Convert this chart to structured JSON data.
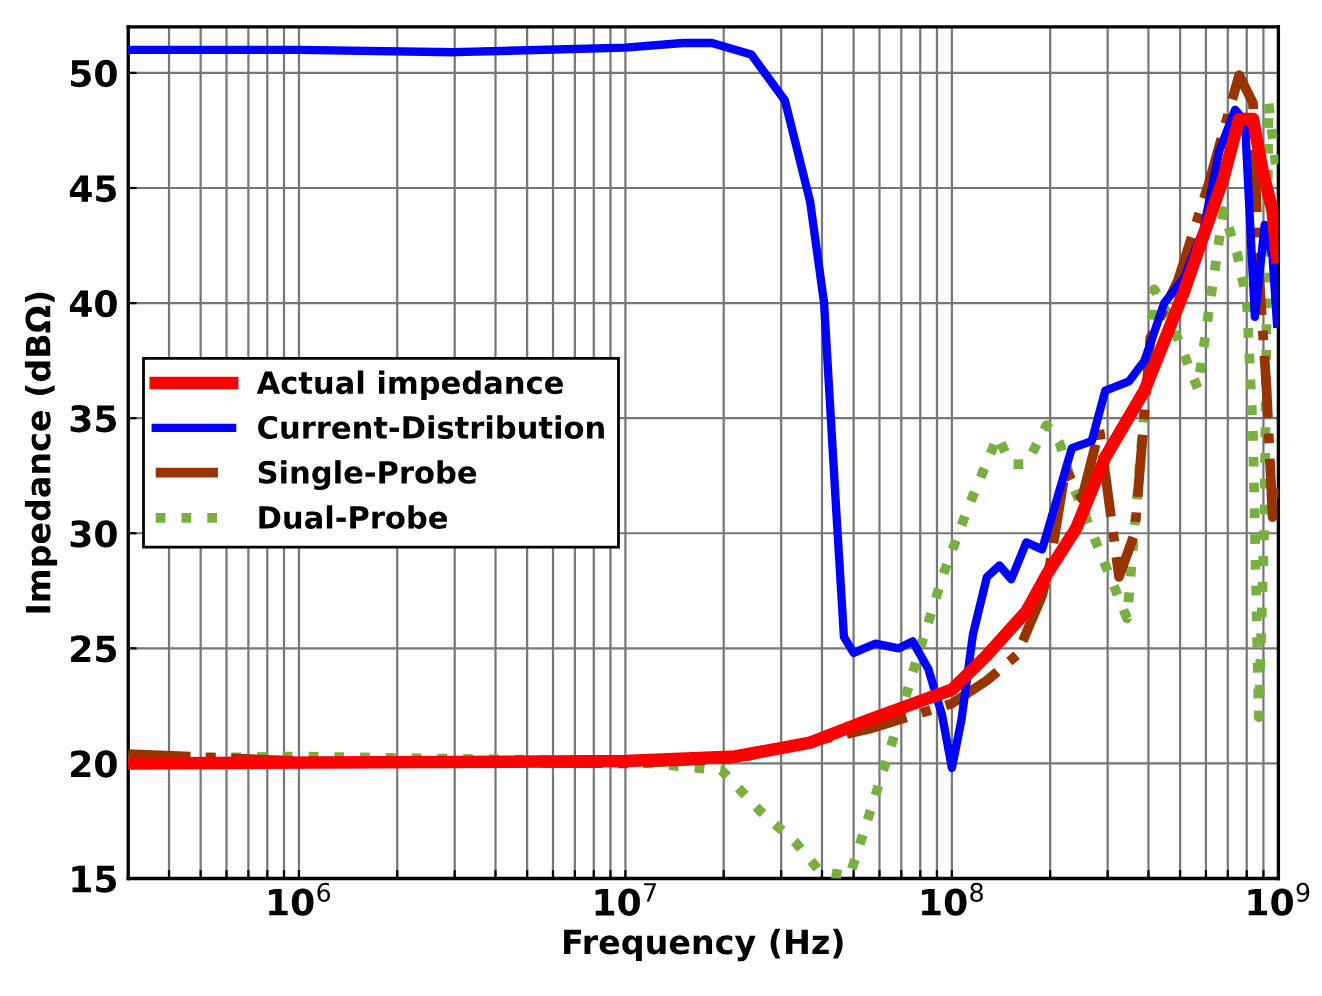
{
  "chart_data": {
    "type": "line",
    "xlabel": "Frequency (Hz)",
    "ylabel": "Impedance (dBΩ)",
    "log": "x",
    "grid": true,
    "legend": "center left",
    "xlim": [
      300000,
      1000000000
    ],
    "xticks": [
      {
        "value": 400000,
        "label": null
      },
      {
        "value": 500000,
        "label": null
      },
      {
        "value": 600000,
        "label": null
      },
      {
        "value": 700000,
        "label": null
      },
      {
        "value": 800000,
        "label": null
      },
      {
        "value": 900000,
        "label": null
      },
      {
        "value": 1000000,
        "label": "10$^{6}$"
      },
      {
        "value": 2000000,
        "label": null
      },
      {
        "value": 3000000,
        "label": null
      },
      {
        "value": 4000000,
        "label": null
      },
      {
        "value": 5000000,
        "label": null
      },
      {
        "value": 6000000,
        "label": null
      },
      {
        "value": 7000000,
        "label": null
      },
      {
        "value": 8000000,
        "label": null
      },
      {
        "value": 9000000,
        "label": null
      },
      {
        "value": 10000000,
        "label": "10$^{7}$"
      },
      {
        "value": 20000000,
        "label": null
      },
      {
        "value": 30000000,
        "label": null
      },
      {
        "value": 40000000,
        "label": null
      },
      {
        "value": 50000000,
        "label": null
      },
      {
        "value": 60000000,
        "label": null
      },
      {
        "value": 70000000,
        "label": null
      },
      {
        "value": 80000000,
        "label": null
      },
      {
        "value": 90000000,
        "label": null
      },
      {
        "value": 100000000,
        "label": "10$^{8}$"
      },
      {
        "value": 200000000,
        "label": null
      },
      {
        "value": 300000000,
        "label": null
      },
      {
        "value": 400000000,
        "label": null
      },
      {
        "value": 500000000,
        "label": null
      },
      {
        "value": 600000000,
        "label": null
      },
      {
        "value": 700000000,
        "label": null
      },
      {
        "value": 800000000,
        "label": null
      },
      {
        "value": 900000000,
        "label": null
      },
      {
        "value": 1000000000,
        "label": "10$^{9}$"
      }
    ],
    "ylim": [
      15,
      52
    ],
    "yticks": [
      15,
      20,
      25,
      30,
      35,
      40,
      45,
      50
    ],
    "series": [
      {
        "name": "Actual impedance",
        "color": "#ff0000",
        "line_style": "solid",
        "x": [
          300000.0,
          10000000.0,
          21700000.0,
          36800000.0,
          55900000.0,
          100000000.0,
          128000000.0,
          169000000.0,
          195000000.0,
          240000000.0,
          295000000.0,
          389000000.0,
          514000000.0,
          678000000.0,
          758000000.0,
          836000000.0,
          896000000.0,
          960000000.0,
          990000000.0
        ],
        "values": [
          20.0,
          20.1,
          20.3,
          20.9,
          21.9,
          23.2,
          24.7,
          26.6,
          28.2,
          30.2,
          33.3,
          36.2,
          40.5,
          45.4,
          48.0,
          48.0,
          45.7,
          44.0,
          42.0
        ]
      },
      {
        "name": "Current-Distribution",
        "color": "#0000ff",
        "line_style": "solid",
        "x": [
          300000.0,
          1000000.0,
          3000000.0,
          10000000.0,
          15000000.0,
          18400000.0,
          24300000.0,
          30800000.0,
          36800000.0,
          40600000.0,
          44100000.0,
          46700000.0,
          50000000.0,
          58200000.0,
          68800000.0,
          75800000.0,
          84700000.0,
          93300000.0,
          100000000.0,
          107000000.0,
          116000000.0,
          128000000.0,
          140000000.0,
          152000000.0,
          169000000.0,
          189000000.0,
          206000000.0,
          233000000.0,
          268000000.0,
          295000000.0,
          349000000.0,
          389000000.0,
          447000000.0,
          514000000.0,
          590000000.0,
          659000000.0,
          737000000.0,
          790000000.0,
          847000000.0,
          908000000.0,
          960000000.0,
          990000000.0
        ],
        "values": [
          51.0,
          51.0,
          50.9,
          51.1,
          51.3,
          51.3,
          50.8,
          48.8,
          44.4,
          40.0,
          31.3,
          25.5,
          24.8,
          25.2,
          25.0,
          25.3,
          24.1,
          22.1,
          19.8,
          21.9,
          25.6,
          28.1,
          28.6,
          28.0,
          29.6,
          29.3,
          31.1,
          33.7,
          34.0,
          36.2,
          36.6,
          37.5,
          40.0,
          41.1,
          43.2,
          46.6,
          48.4,
          47.9,
          39.4,
          43.4,
          42.0,
          39.1
        ]
      },
      {
        "name": "Single-Probe",
        "color": "#993300",
        "line_style": "dashdot",
        "x": [
          300000.0,
          1000000.0,
          10000000.0,
          21700000.0,
          55900000.0,
          100000000.0,
          128000000.0,
          158000000.0,
          189000000.0,
          200000000.0,
          223000000.0,
          250000000.0,
          283000000.0,
          325000000.0,
          363000000.0,
          406000000.0,
          493000000.0,
          615000000.0,
          758000000.0,
          836000000.0,
          871000000.0,
          920000000.0,
          960000000.0,
          990000000.0
        ],
        "values": [
          20.4,
          20.1,
          20.0,
          20.2,
          21.5,
          22.6,
          23.6,
          24.7,
          27.3,
          28.7,
          32.8,
          31.5,
          34.5,
          28.1,
          30.0,
          38.5,
          41.0,
          45.3,
          49.9,
          48.7,
          41.4,
          36.3,
          30.7,
          32.0
        ]
      },
      {
        "name": "Dual-Probe",
        "color": "#77b040",
        "line_style": "dotted",
        "x": [
          300000.0,
          1000000.0,
          3000000.0,
          10000000.0,
          19700000.0,
          26000000.0,
          33000000.0,
          39500000.0,
          48600000.0,
          55900000.0,
          65900000.0,
          79100000.0,
          94600000.0,
          112000000.0,
          138000000.0,
          152000000.0,
          169000000.0,
          195000000.0,
          214000000.0,
          233000000.0,
          344000000.0,
          417000000.0,
          460000000.0,
          566000000.0,
          678000000.0,
          746000000.0,
          801000000.0,
          836000000.0,
          871000000.0,
          908000000.0,
          933000000.0,
          986000000.0
        ],
        "values": [
          20.2,
          20.3,
          20.2,
          20.1,
          19.7,
          17.9,
          16.6,
          15.3,
          15.1,
          17.8,
          21.0,
          24.8,
          28.3,
          31.1,
          34.2,
          33.0,
          33.0,
          34.7,
          33.9,
          32.2,
          26.3,
          40.6,
          39.5,
          36.3,
          44.0,
          42.2,
          40.1,
          34.2,
          22.0,
          31.0,
          48.7,
          45.8
        ]
      }
    ]
  }
}
